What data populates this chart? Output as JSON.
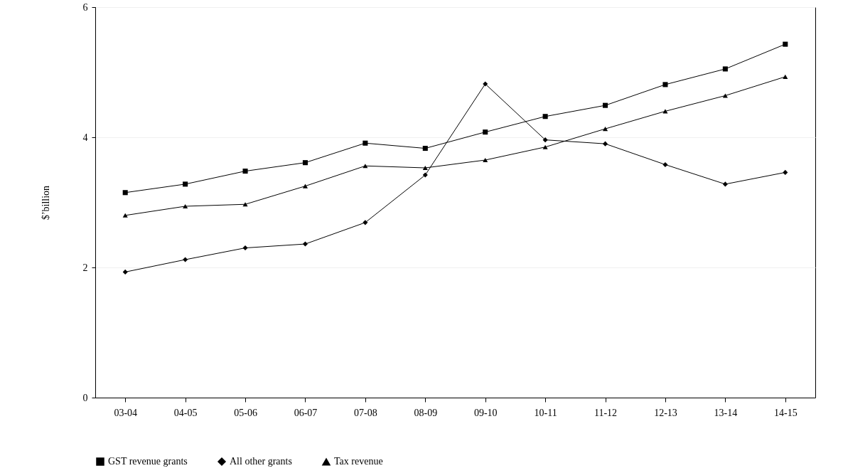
{
  "chart_data": {
    "type": "line",
    "ylabel": "$’billion",
    "categories": [
      "03-04",
      "04-05",
      "05-06",
      "06-07",
      "07-08",
      "08-09",
      "09-10",
      "10-11",
      "11-12",
      "12-13",
      "13-14",
      "14-15"
    ],
    "series": [
      {
        "name": "GST revenue grants",
        "color": "#000000",
        "marker": "square",
        "values": [
          3.15,
          3.28,
          3.48,
          3.61,
          3.91,
          3.83,
          4.08,
          4.32,
          4.49,
          4.81,
          5.05,
          5.43
        ]
      },
      {
        "name": "All other grants",
        "color": "#000000",
        "marker": "diamond",
        "values": [
          1.93,
          2.12,
          2.3,
          2.36,
          2.69,
          3.42,
          4.82,
          3.96,
          3.9,
          3.58,
          3.28,
          3.46
        ]
      },
      {
        "name": "Tax revenue",
        "color": "#000000",
        "marker": "triangle",
        "values": [
          2.8,
          2.94,
          2.97,
          3.25,
          3.56,
          3.53,
          3.65,
          3.85,
          4.13,
          4.4,
          4.64,
          4.93
        ]
      }
    ],
    "ylim": [
      0,
      6
    ],
    "yticks": [
      0,
      2,
      4,
      6
    ],
    "grid": "y",
    "legend": "bottom"
  }
}
